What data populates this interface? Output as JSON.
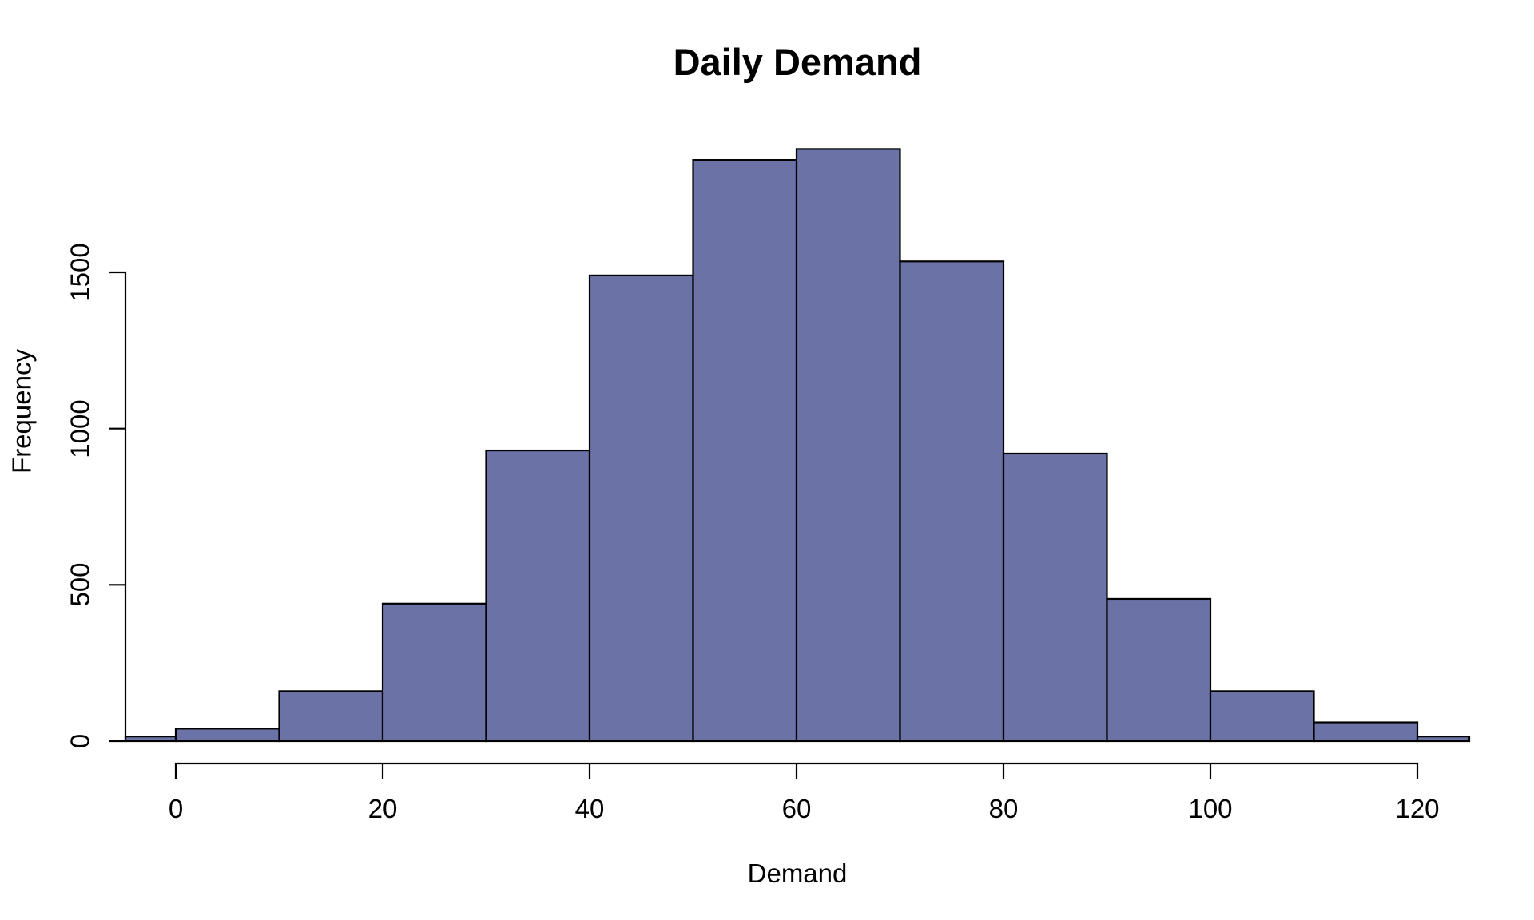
{
  "chart_data": {
    "type": "bar",
    "subtype": "histogram",
    "title": "Daily Demand",
    "xlabel": "Demand",
    "ylabel": "Frequency",
    "bin_width": 10,
    "bin_edges": [
      -10,
      0,
      10,
      20,
      30,
      40,
      50,
      60,
      70,
      80,
      90,
      100,
      110,
      120,
      130
    ],
    "counts": [
      15,
      40,
      160,
      440,
      930,
      1490,
      1860,
      1895,
      1535,
      920,
      455,
      160,
      60,
      15
    ],
    "x_ticks": [
      {
        "value": 0,
        "label": "0"
      },
      {
        "value": 20,
        "label": "20"
      },
      {
        "value": 40,
        "label": "40"
      },
      {
        "value": 60,
        "label": "60"
      },
      {
        "value": 80,
        "label": "80"
      },
      {
        "value": 100,
        "label": "100"
      },
      {
        "value": 120,
        "label": "120"
      }
    ],
    "y_ticks": [
      {
        "value": 0,
        "label": "0"
      },
      {
        "value": 500,
        "label": "500"
      },
      {
        "value": 1000,
        "label": "1000"
      },
      {
        "value": 1500,
        "label": "1500"
      }
    ],
    "xlim": [
      0,
      120
    ],
    "ylim": [
      0,
      1900
    ],
    "x_view_range": [
      -4.9,
      125.1
    ],
    "grid": false,
    "legend": null,
    "colors": {
      "bar_fill": "#6a72a6",
      "bar_border": "#000000",
      "axis": "#000000",
      "text": "#000000",
      "background": "#ffffff"
    }
  }
}
